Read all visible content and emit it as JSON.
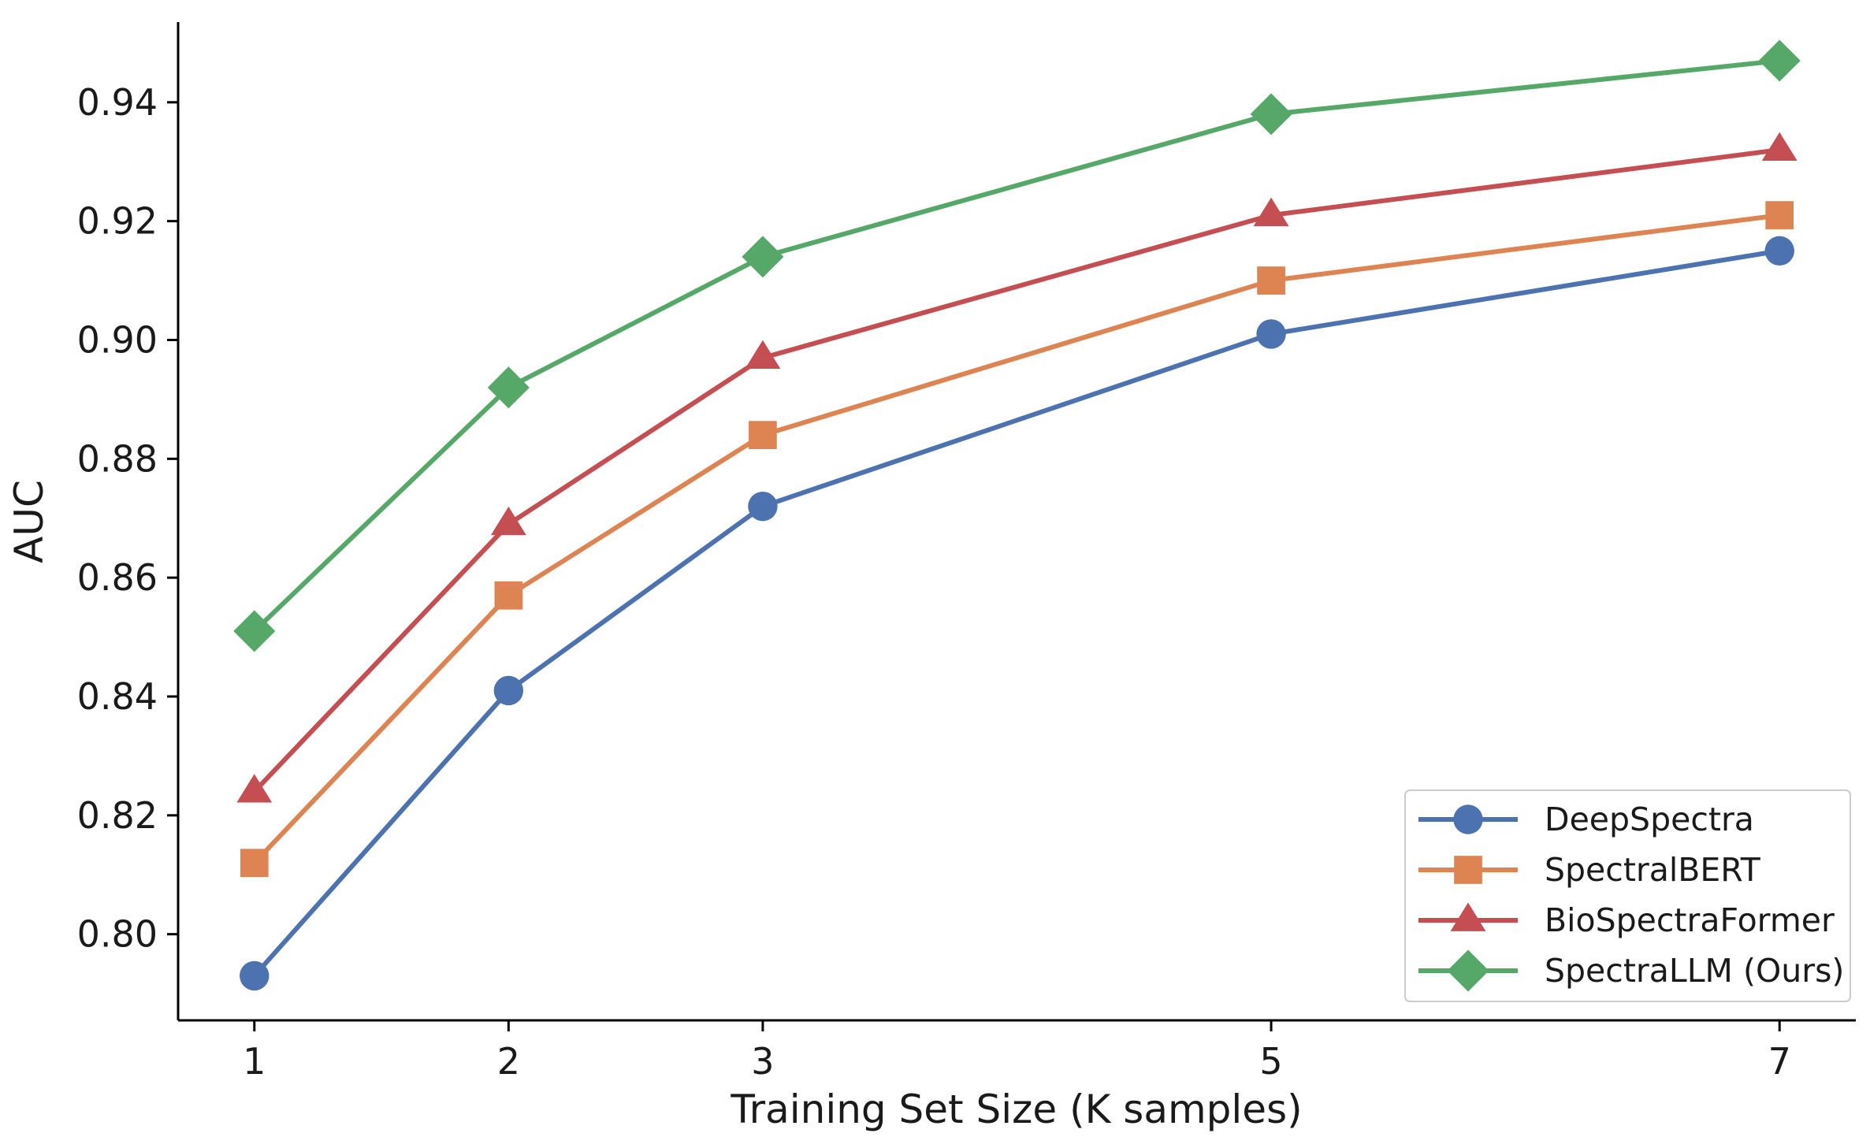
{
  "chart_data": {
    "type": "line",
    "title": "",
    "xlabel": "Training Set Size (K samples)",
    "ylabel": "AUC",
    "x": [
      1,
      2,
      3,
      5,
      7
    ],
    "x_tick_labels": [
      "1",
      "2",
      "3",
      "5",
      "7"
    ],
    "xlim": [
      0.7,
      7.3
    ],
    "ylim": [
      0.7855,
      0.9535
    ],
    "y_ticks": [
      0.8,
      0.82,
      0.84,
      0.86,
      0.88,
      0.9,
      0.92,
      0.94
    ],
    "y_tick_labels": [
      "0.80",
      "0.82",
      "0.84",
      "0.86",
      "0.88",
      "0.90",
      "0.92",
      "0.94"
    ],
    "grid": false,
    "legend_position": "lower-right",
    "series": [
      {
        "name": "DeepSpectra",
        "color": "#4C72B0",
        "marker": "circle",
        "values": [
          0.793,
          0.841,
          0.872,
          0.901,
          0.915
        ]
      },
      {
        "name": "SpectralBERT",
        "color": "#DD8452",
        "marker": "square",
        "values": [
          0.812,
          0.857,
          0.884,
          0.91,
          0.921
        ]
      },
      {
        "name": "BioSpectraFormer",
        "color": "#C44E52",
        "marker": "triangle",
        "values": [
          0.824,
          0.869,
          0.897,
          0.921,
          0.932
        ]
      },
      {
        "name": "SpectraLLM (Ours)",
        "color": "#55A868",
        "marker": "diamond",
        "values": [
          0.851,
          0.892,
          0.914,
          0.938,
          0.947
        ]
      }
    ]
  }
}
